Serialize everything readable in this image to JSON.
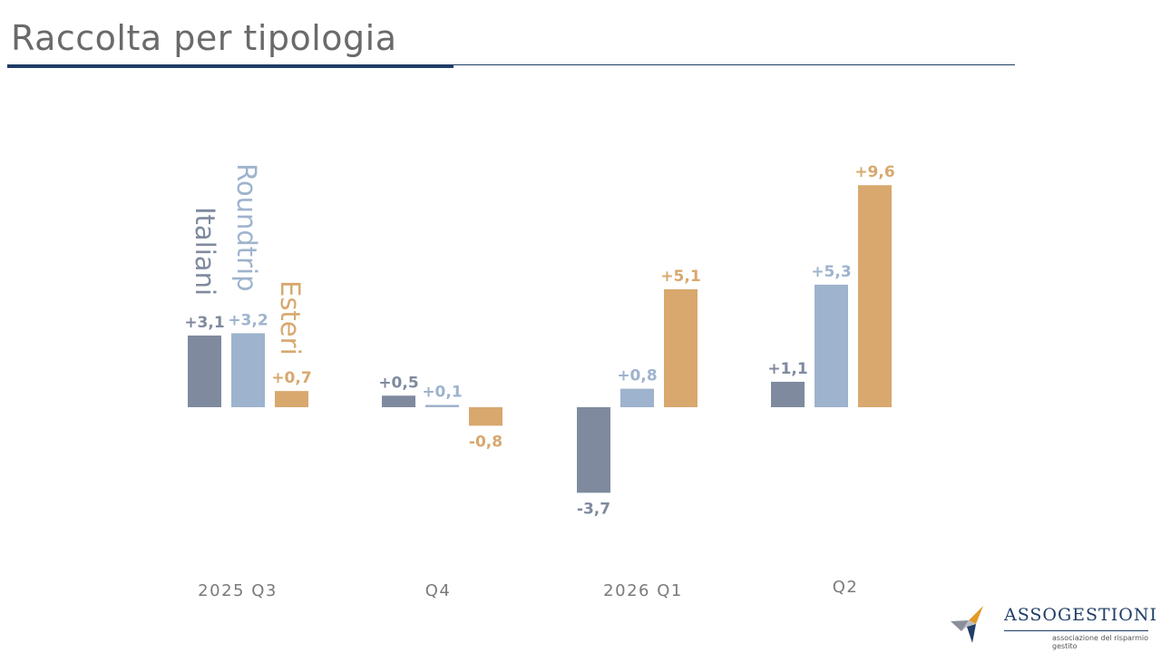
{
  "page": {
    "title": "Raccolta per tipologia"
  },
  "logo": {
    "name": "ASSOGESTIONI",
    "tagline": "associazione del risparmio gestito"
  },
  "colors": {
    "rule": "#1f3d66",
    "italiani": "#7f8a9e",
    "roundtrip": "#9eb3cd",
    "esteri": "#d8a86e"
  },
  "chart_data": {
    "type": "bar",
    "categories": [
      "2025 Q3",
      "Q4",
      "2026 Q1",
      "Q2"
    ],
    "series": [
      {
        "name": "Italiani",
        "values": [
          3.1,
          0.5,
          -3.7,
          1.1
        ],
        "labels": [
          "+3,1",
          "+0,5",
          "-3,7",
          "+1,1"
        ],
        "color": "#7f8a9e"
      },
      {
        "name": "Roundtrip",
        "values": [
          3.2,
          0.1,
          0.8,
          5.3
        ],
        "labels": [
          "+3,2",
          "+0,1",
          "+0,8",
          "+5,3"
        ],
        "color": "#9eb3cd"
      },
      {
        "name": "Esteri",
        "values": [
          0.7,
          -0.8,
          5.1,
          9.6
        ],
        "labels": [
          "+0,7",
          "-0,8",
          "+5,1",
          "+9,6"
        ],
        "color": "#d8a86e"
      }
    ],
    "legend": "rotated labels above first category"
  }
}
